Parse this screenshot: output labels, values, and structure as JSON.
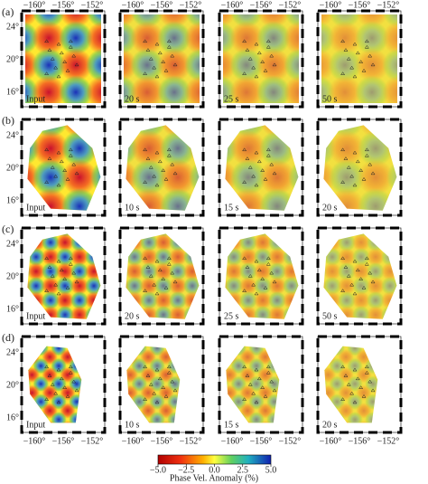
{
  "rows": [
    {
      "label": "(a)",
      "panels": [
        "Input",
        "20 s",
        "25 s",
        "50 s"
      ]
    },
    {
      "label": "(b)",
      "panels": [
        "Input",
        "10 s",
        "15 s",
        "20 s"
      ]
    },
    {
      "label": "(c)",
      "panels": [
        "Input",
        "20 s",
        "25 s",
        "50 s"
      ]
    },
    {
      "label": "(d)",
      "panels": [
        "Input",
        "10 s",
        "15 s",
        "20 s"
      ]
    }
  ],
  "x_tick_labels": [
    "−160°",
    "−156°",
    "−152°"
  ],
  "y_tick_labels": [
    "24°",
    "20°",
    "16°"
  ],
  "colorbar": {
    "label": "Phase Vel. Anomaly (%)",
    "lim": [
      -5,
      5
    ],
    "ticks": [
      {
        "value": -5,
        "label": "−5.0"
      },
      {
        "value": -2.5,
        "label": "−2.5"
      },
      {
        "value": 0,
        "label": "0.0"
      },
      2.5,
      {
        "value": 5,
        "label": "5.0"
      }
    ]
  }
}
